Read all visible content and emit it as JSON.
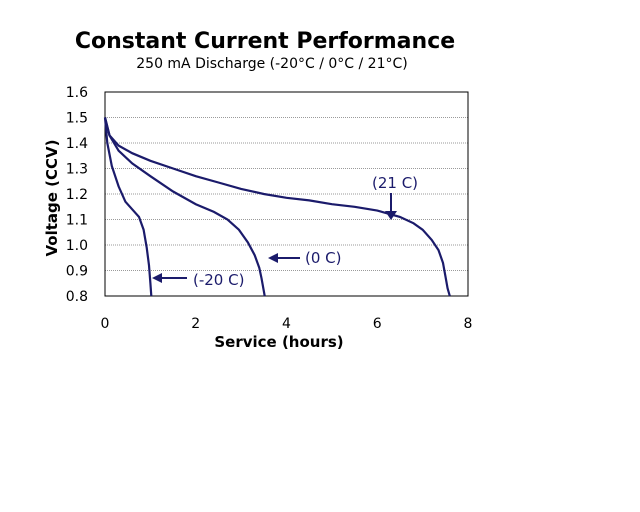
{
  "chart_data": {
    "type": "line",
    "title": "Constant Current Performance",
    "subtitle": "250 mA Discharge  (-20°C / 0°C / 21°C)",
    "xlabel": "Service (hours)",
    "ylabel": "Voltage (CCV)",
    "xlim": [
      0,
      8
    ],
    "ylim": [
      0.8,
      1.6
    ],
    "xticks": [
      "0",
      "2",
      "4",
      "6",
      "8"
    ],
    "yticks": [
      "1.6",
      "1.5",
      "1.4",
      "1.3",
      "1.2",
      "1.1",
      "1.0",
      "0.9",
      "0.8"
    ],
    "grid": true,
    "series": [
      {
        "name": "(21 C)",
        "x": [
          0,
          0.1,
          0.3,
          0.6,
          1.0,
          1.5,
          2.0,
          2.5,
          3.0,
          3.5,
          4.0,
          4.5,
          5.0,
          5.5,
          6.0,
          6.5,
          6.8,
          7.0,
          7.2,
          7.35,
          7.45,
          7.5,
          7.55,
          7.6
        ],
        "y": [
          1.5,
          1.43,
          1.39,
          1.36,
          1.33,
          1.3,
          1.27,
          1.245,
          1.22,
          1.2,
          1.185,
          1.175,
          1.16,
          1.15,
          1.135,
          1.11,
          1.085,
          1.06,
          1.02,
          0.98,
          0.93,
          0.88,
          0.83,
          0.8
        ],
        "color": "#1b1b6b"
      },
      {
        "name": "(0 C)",
        "x": [
          0,
          0.1,
          0.3,
          0.6,
          1.0,
          1.5,
          2.0,
          2.4,
          2.7,
          2.95,
          3.15,
          3.3,
          3.4,
          3.45,
          3.5,
          3.52
        ],
        "y": [
          1.5,
          1.43,
          1.37,
          1.32,
          1.27,
          1.21,
          1.16,
          1.13,
          1.1,
          1.06,
          1.01,
          0.96,
          0.91,
          0.87,
          0.82,
          0.8
        ],
        "color": "#1b1b6b"
      },
      {
        "name": "(-20 C)",
        "x": [
          0,
          0.05,
          0.15,
          0.3,
          0.45,
          0.6,
          0.75,
          0.85,
          0.92,
          0.97,
          1.0,
          1.02
        ],
        "y": [
          1.5,
          1.4,
          1.31,
          1.23,
          1.17,
          1.14,
          1.11,
          1.06,
          0.99,
          0.92,
          0.85,
          0.8
        ],
        "color": "#1b1b6b"
      }
    ],
    "annotations": [
      {
        "text": "(21 C)",
        "series": "(21 C)",
        "arrow": "down"
      },
      {
        "text": "(0 C)",
        "series": "(0 C)",
        "arrow": "left"
      },
      {
        "text": "(-20 C)",
        "series": "(-20 C)",
        "arrow": "left"
      }
    ]
  }
}
